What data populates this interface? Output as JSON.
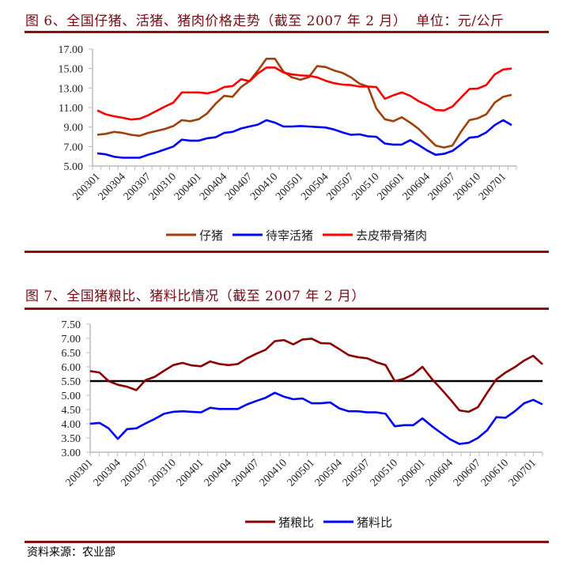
{
  "chart_data": [
    {
      "type": "line",
      "title": "图 6、全国仔猪、活猪、猪肉价格走势（截至 2007 年 2 月）  单位：元/公斤",
      "xlabel": "",
      "ylabel": "",
      "x": [
        "200301",
        "200302",
        "200303",
        "200304",
        "200305",
        "200306",
        "200307",
        "200308",
        "200309",
        "200310",
        "200311",
        "200312",
        "200401",
        "200402",
        "200403",
        "200404",
        "200405",
        "200406",
        "200407",
        "200408",
        "200409",
        "200410",
        "200411",
        "200412",
        "200501",
        "200502",
        "200503",
        "200504",
        "200505",
        "200506",
        "200507",
        "200508",
        "200509",
        "200510",
        "200511",
        "200512",
        "200601",
        "200602",
        "200603",
        "200604",
        "200605",
        "200606",
        "200607",
        "200608",
        "200609",
        "200610",
        "200611",
        "200612",
        "200701",
        "200702"
      ],
      "x_tick_labels": [
        "200301",
        "200304",
        "200307",
        "200310",
        "200401",
        "200404",
        "200407",
        "200410",
        "200501",
        "200504",
        "200507",
        "200510",
        "200601",
        "200604",
        "200607",
        "200610",
        "200701"
      ],
      "ylim": [
        5,
        17
      ],
      "y_ticks": [
        "5.00",
        "7.00",
        "9.00",
        "11.00",
        "13.00",
        "15.00",
        "17.00"
      ],
      "legend_position": "bottom",
      "grid": false,
      "series": [
        {
          "name": "仔猪",
          "color": "#a0400a",
          "values": [
            8.2,
            8.3,
            8.5,
            8.4,
            8.2,
            8.1,
            8.4,
            8.6,
            8.8,
            9.1,
            9.7,
            9.6,
            9.8,
            10.4,
            11.4,
            12.2,
            12.1,
            13.1,
            13.7,
            14.8,
            16.0,
            16.0,
            14.7,
            14.1,
            13.85,
            14.1,
            15.25,
            15.15,
            14.8,
            14.55,
            14.1,
            13.45,
            13.15,
            10.9,
            9.8,
            9.6,
            10.0,
            9.45,
            8.8,
            7.95,
            7.1,
            6.9,
            7.1,
            8.5,
            9.7,
            9.9,
            10.3,
            11.5,
            12.1,
            12.3
          ]
        },
        {
          "name": "待宰活猪",
          "color": "#0000ff",
          "values": [
            6.3,
            6.2,
            5.95,
            5.85,
            5.85,
            5.85,
            6.15,
            6.4,
            6.7,
            7.0,
            7.7,
            7.6,
            7.6,
            7.85,
            7.95,
            8.4,
            8.5,
            8.85,
            9.05,
            9.25,
            9.7,
            9.45,
            9.05,
            9.05,
            9.1,
            9.05,
            9.0,
            8.95,
            8.75,
            8.45,
            8.2,
            8.25,
            8.05,
            8.0,
            7.3,
            7.2,
            7.2,
            7.65,
            7.15,
            6.6,
            6.15,
            6.25,
            6.55,
            7.2,
            7.9,
            8.0,
            8.45,
            9.2,
            9.7,
            9.2
          ]
        },
        {
          "name": "去皮带骨猪肉",
          "color": "#ff0000",
          "values": [
            10.7,
            10.3,
            10.1,
            9.95,
            9.77,
            9.85,
            10.2,
            10.65,
            11.1,
            11.5,
            12.55,
            12.55,
            12.55,
            12.45,
            12.65,
            13.1,
            13.2,
            13.9,
            13.7,
            14.5,
            15.1,
            15.1,
            14.6,
            14.4,
            14.3,
            14.25,
            14.1,
            13.75,
            13.5,
            13.35,
            13.3,
            13.15,
            13.15,
            13.1,
            11.9,
            12.25,
            12.55,
            12.2,
            11.65,
            11.25,
            10.75,
            10.7,
            11.1,
            12.0,
            12.9,
            12.95,
            13.3,
            14.4,
            14.9,
            15.0
          ]
        }
      ]
    },
    {
      "type": "line",
      "title": "图 7、全国猪粮比、猪料比情况（截至 2007 年 2 月）",
      "xlabel": "",
      "ylabel": "",
      "x": [
        "200301",
        "200302",
        "200303",
        "200304",
        "200305",
        "200306",
        "200307",
        "200308",
        "200309",
        "200310",
        "200311",
        "200312",
        "200401",
        "200402",
        "200403",
        "200404",
        "200405",
        "200406",
        "200407",
        "200408",
        "200409",
        "200410",
        "200411",
        "200412",
        "200501",
        "200502",
        "200503",
        "200504",
        "200505",
        "200506",
        "200507",
        "200508",
        "200509",
        "200510",
        "200511",
        "200512",
        "200601",
        "200602",
        "200603",
        "200604",
        "200605",
        "200606",
        "200607",
        "200608",
        "200609",
        "200610",
        "200611",
        "200612",
        "200701",
        "200702"
      ],
      "x_tick_labels": [
        "200301",
        "200304",
        "200307",
        "200310",
        "200401",
        "200404",
        "200407",
        "200410",
        "200501",
        "200504",
        "200507",
        "200510",
        "200601",
        "200604",
        "200607",
        "200610",
        "200701"
      ],
      "ylim": [
        3,
        7.5
      ],
      "y_ticks": [
        "3.00",
        "3.50",
        "4.00",
        "4.50",
        "5.00",
        "5.50",
        "6.00",
        "6.50",
        "7.00",
        "7.50"
      ],
      "reference_line": {
        "value": 5.5,
        "color": "#000000"
      },
      "legend_position": "bottom",
      "grid": false,
      "series": [
        {
          "name": "猪粮比",
          "color": "#8b0000",
          "values": [
            5.85,
            5.8,
            5.5,
            5.37,
            5.3,
            5.18,
            5.53,
            5.65,
            5.86,
            6.06,
            6.14,
            6.05,
            6.02,
            6.19,
            6.1,
            6.06,
            6.1,
            6.3,
            6.46,
            6.6,
            6.9,
            6.94,
            6.79,
            6.96,
            6.99,
            6.83,
            6.82,
            6.62,
            6.41,
            6.34,
            6.3,
            6.16,
            6.06,
            5.5,
            5.58,
            5.74,
            6.0,
            5.58,
            5.23,
            4.86,
            4.47,
            4.42,
            4.58,
            5.09,
            5.56,
            5.8,
            5.99,
            6.22,
            6.39,
            6.09
          ]
        },
        {
          "name": "猪料比",
          "color": "#0000ff",
          "values": [
            4.0,
            4.03,
            3.84,
            3.47,
            3.81,
            3.84,
            4.01,
            4.17,
            4.35,
            4.42,
            4.44,
            4.42,
            4.4,
            4.56,
            4.52,
            4.52,
            4.52,
            4.68,
            4.8,
            4.91,
            5.09,
            4.95,
            4.86,
            4.89,
            4.72,
            4.72,
            4.75,
            4.54,
            4.44,
            4.44,
            4.4,
            4.4,
            4.35,
            3.91,
            3.95,
            3.95,
            4.19,
            3.92,
            3.68,
            3.45,
            3.29,
            3.33,
            3.5,
            3.77,
            4.23,
            4.21,
            4.44,
            4.72,
            4.84,
            4.68
          ]
        }
      ]
    }
  ],
  "source": "资料来源：农业部",
  "colors": {
    "title": "#7a0a14",
    "rule": "#8b1016"
  }
}
